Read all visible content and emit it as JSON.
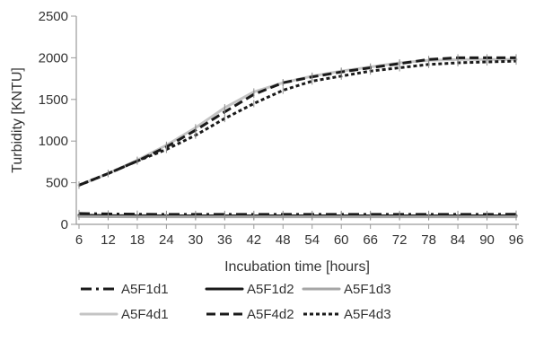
{
  "chart_data": {
    "type": "line",
    "title": "",
    "xlabel": "Incubation time [hours]",
    "ylabel": "Turbidity [KNTU]",
    "xlim": [
      6,
      96
    ],
    "ylim": [
      0,
      2500
    ],
    "x_ticks": [
      6,
      12,
      18,
      24,
      30,
      36,
      42,
      48,
      54,
      60,
      66,
      72,
      78,
      84,
      90,
      96
    ],
    "y_ticks": [
      0,
      500,
      1000,
      1500,
      2000,
      2500
    ],
    "grid": false,
    "legend_position": "bottom",
    "x": [
      6,
      12,
      18,
      24,
      30,
      36,
      42,
      48,
      54,
      60,
      66,
      72,
      78,
      84,
      90,
      96
    ],
    "series": [
      {
        "name": "A5F1d1",
        "color": "#1a1a1a",
        "dash": "dashdot",
        "values": [
          130,
          125,
          122,
          120,
          120,
          120,
          120,
          120,
          120,
          120,
          120,
          120,
          120,
          120,
          120,
          122
        ]
      },
      {
        "name": "A5F1d2",
        "color": "#1a1a1a",
        "dash": "solid",
        "values": [
          110,
          105,
          103,
          102,
          102,
          102,
          102,
          102,
          102,
          102,
          102,
          102,
          102,
          102,
          102,
          102
        ]
      },
      {
        "name": "A5F1d3",
        "color": "#a6a6a6",
        "dash": "solid",
        "values": [
          95,
          92,
          90,
          90,
          90,
          90,
          90,
          90,
          90,
          90,
          90,
          90,
          90,
          90,
          90,
          90
        ]
      },
      {
        "name": "A5F4d1",
        "color": "#c4c4c4",
        "dash": "solid",
        "values": [
          470,
          610,
          770,
          950,
          1160,
          1400,
          1590,
          1700,
          1780,
          1840,
          1890,
          1940,
          1970,
          1980,
          1980,
          1980
        ]
      },
      {
        "name": "A5F4d2",
        "color": "#1a1a1a",
        "dash": "dashed",
        "values": [
          470,
          610,
          760,
          930,
          1130,
          1350,
          1560,
          1700,
          1770,
          1830,
          1880,
          1930,
          1980,
          2000,
          2000,
          2000
        ]
      },
      {
        "name": "A5F4d3",
        "color": "#1a1a1a",
        "dash": "dotted",
        "values": [
          470,
          610,
          760,
          900,
          1070,
          1270,
          1450,
          1610,
          1720,
          1780,
          1840,
          1880,
          1920,
          1940,
          1950,
          1960
        ]
      }
    ]
  }
}
